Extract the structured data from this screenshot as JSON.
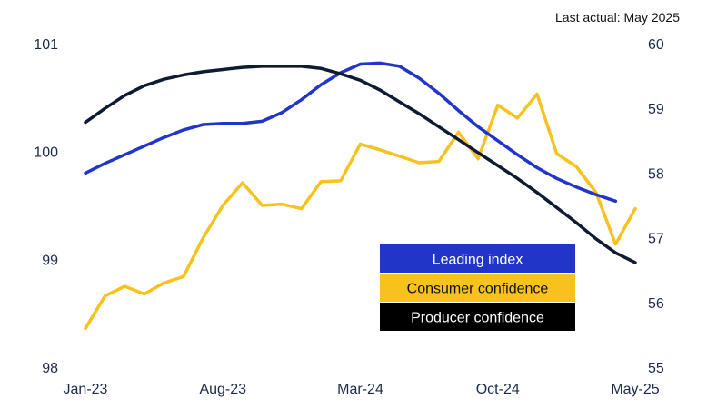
{
  "annotation": "Last actual: May 2025",
  "chart_data": {
    "type": "line",
    "x": [
      "Jan-23",
      "Feb-23",
      "Mar-23",
      "Apr-23",
      "May-23",
      "Jun-23",
      "Jul-23",
      "Aug-23",
      "Sep-23",
      "Oct-23",
      "Nov-23",
      "Dec-23",
      "Jan-24",
      "Feb-24",
      "Mar-24",
      "Apr-24",
      "May-24",
      "Jun-24",
      "Jul-24",
      "Aug-24",
      "Sep-24",
      "Oct-24",
      "Nov-24",
      "Dec-24",
      "Jan-25",
      "Feb-25",
      "Mar-25",
      "Apr-25",
      "May-25"
    ],
    "x_tick_labels": [
      "Jan-23",
      "Aug-23",
      "Mar-24",
      "Oct-24",
      "May-25"
    ],
    "y_left": {
      "ylim": [
        98,
        101
      ],
      "ticks": [
        "98",
        "99",
        "100",
        "101"
      ]
    },
    "y_right": {
      "ylim": [
        55,
        60
      ],
      "ticks": [
        "55",
        "56",
        "57",
        "58",
        "59",
        "60"
      ]
    },
    "series": [
      {
        "name": "Leading index",
        "axis": "left",
        "color": "#2135c9",
        "values": [
          99.8,
          99.89,
          99.97,
          100.05,
          100.13,
          100.2,
          100.25,
          100.26,
          100.26,
          100.28,
          100.36,
          100.48,
          100.62,
          100.73,
          100.81,
          100.82,
          100.79,
          100.68,
          100.54,
          100.38,
          100.23,
          100.1,
          99.97,
          99.85,
          99.75,
          99.67,
          99.6,
          99.54,
          null
        ]
      },
      {
        "name": "Consumer confidence",
        "axis": "right",
        "color": "#f7c21e",
        "values": [
          55.6,
          56.1,
          56.25,
          56.13,
          56.3,
          56.4,
          57.0,
          57.5,
          57.85,
          57.5,
          57.52,
          57.45,
          57.87,
          57.88,
          58.45,
          58.36,
          58.26,
          58.16,
          58.18,
          58.63,
          58.22,
          59.05,
          58.85,
          59.22,
          58.3,
          58.1,
          57.7,
          56.9,
          57.45
        ]
      },
      {
        "name": "Producer confidence",
        "axis": "left",
        "color": "#0f1b33",
        "values": [
          100.27,
          100.4,
          100.52,
          100.61,
          100.67,
          100.71,
          100.74,
          100.76,
          100.78,
          100.79,
          100.79,
          100.79,
          100.77,
          100.72,
          100.66,
          100.57,
          100.46,
          100.35,
          100.23,
          100.11,
          99.99,
          99.87,
          99.75,
          99.62,
          99.48,
          99.34,
          99.19,
          99.06,
          98.97
        ]
      }
    ],
    "legend": {
      "placement": "bottom-right",
      "entries": [
        {
          "label": "Leading index",
          "color": "#2135c9",
          "text_color": "#ffffff"
        },
        {
          "label": "Consumer confidence",
          "color": "#f7c21e",
          "text_color": "#111111"
        },
        {
          "label": "Producer confidence",
          "color": "#000000",
          "text_color": "#ffffff"
        }
      ]
    },
    "grid": false
  }
}
